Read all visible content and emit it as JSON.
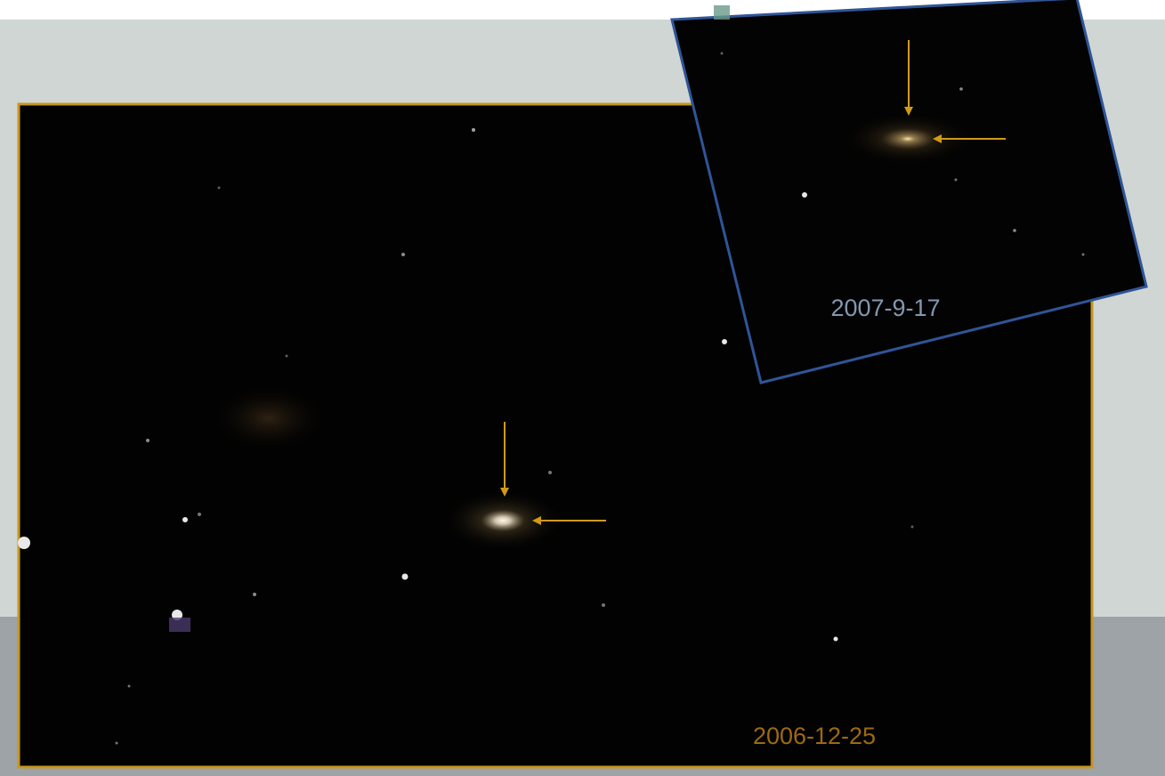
{
  "images": [
    {
      "date": "2006-12-25"
    },
    {
      "date": "2007-9-17"
    }
  ]
}
